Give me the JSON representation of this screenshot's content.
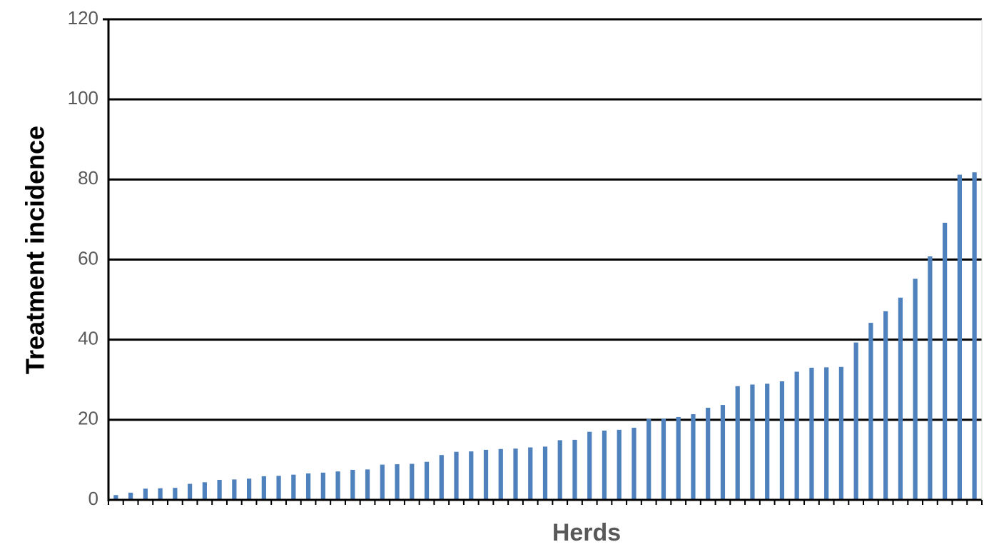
{
  "chart_data": {
    "type": "bar",
    "title": "",
    "xlabel": "Herds",
    "ylabel": "Treatment incidence",
    "ylim": [
      0,
      120
    ],
    "yticks": [
      0,
      20,
      40,
      60,
      80,
      100,
      120
    ],
    "grid": true,
    "legend": "none",
    "bar_color": "#4f81bd",
    "values": [
      1.2,
      1.8,
      2.8,
      2.9,
      3.0,
      4.0,
      4.4,
      5.0,
      5.1,
      5.3,
      5.9,
      6.0,
      6.3,
      6.6,
      6.8,
      7.1,
      7.5,
      7.6,
      8.8,
      8.9,
      9.0,
      9.5,
      11.2,
      12.0,
      12.1,
      12.5,
      12.7,
      12.8,
      13.1,
      13.3,
      14.9,
      15.0,
      17.0,
      17.3,
      17.5,
      18.0,
      20.2,
      20.3,
      20.7,
      21.4,
      23.0,
      23.7,
      28.4,
      28.8,
      29.0,
      29.6,
      32.0,
      33.0,
      33.1,
      33.2,
      39.3,
      44.2,
      47.1,
      50.5,
      55.2,
      60.8,
      69.2,
      81.2,
      81.8
    ]
  }
}
